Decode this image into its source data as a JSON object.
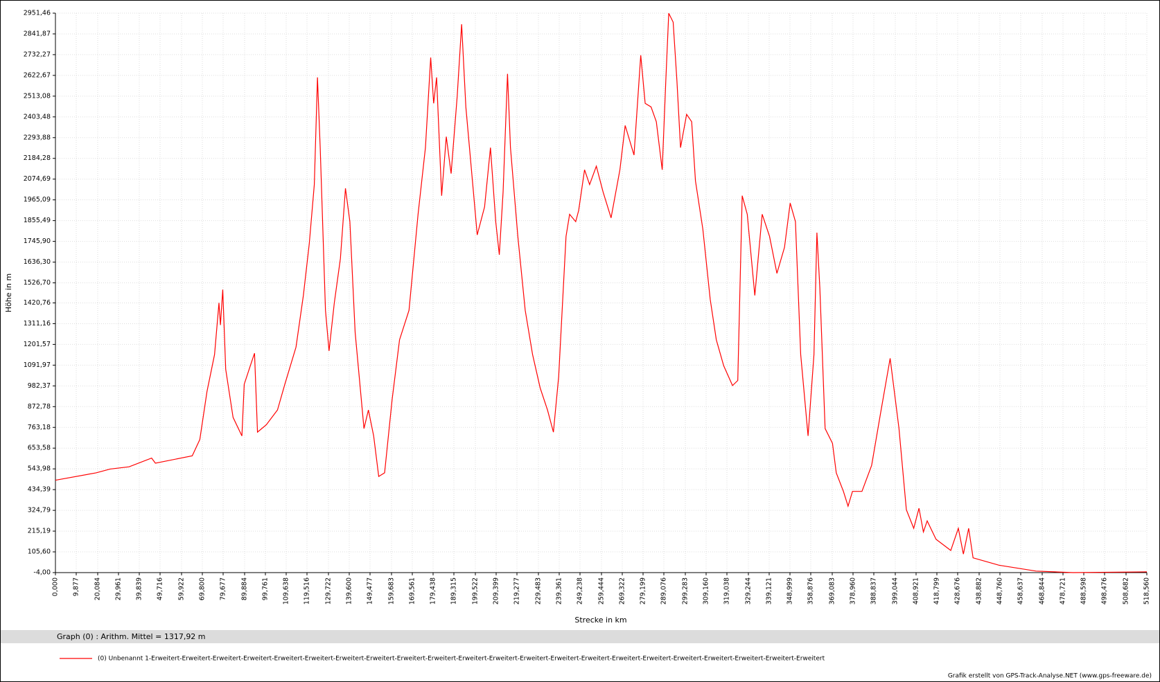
{
  "chart_data": {
    "type": "line",
    "x_label": "Strecke  in  km",
    "y_label": "Höhe  in  m",
    "x": [
      0,
      19.3,
      26,
      35,
      45.7,
      47.5,
      65,
      68.6,
      72,
      75.6,
      77.7,
      78.4,
      79.5,
      80.9,
      84.4,
      88.6,
      89.7,
      93.2,
      94.6,
      96,
      100.2,
      105.5,
      109,
      114.3,
      117.8,
      120.6,
      123,
      124.5,
      125.8,
      128.3,
      130,
      132.5,
      135.4,
      137.8,
      139.9,
      142.4,
      146.6,
      148.7,
      151.2,
      153.6,
      156.4,
      160,
      163.5,
      168,
      172.3,
      175.8,
      178.3,
      179.7,
      181.1,
      183.5,
      185.7,
      188,
      190.9,
      193,
      195,
      198.6,
      200.4,
      203.9,
      206.7,
      209.2,
      210.9,
      212.7,
      214.8,
      216.2,
      219.7,
      223.2,
      226.7,
      230.3,
      233.8,
      236.6,
      239.1,
      242.6,
      244.3,
      247.2,
      248.6,
      251.4,
      253.8,
      257,
      260.2,
      264,
      268.2,
      270.7,
      274.9,
      278.1,
      280.2,
      283,
      285.5,
      288.3,
      290,
      291.4,
      293.5,
      295.3,
      297,
      299.9,
      302.3,
      304.1,
      307.6,
      311.1,
      314,
      317.5,
      321.7,
      324.2,
      326.3,
      328.7,
      332.3,
      335.8,
      339.3,
      342.8,
      346.4,
      349.1,
      351.6,
      354.1,
      357.6,
      360.4,
      361.8,
      363.2,
      365.7,
      369.2,
      371,
      374.4,
      376.6,
      378.7,
      383.2,
      387.8,
      392,
      396.6,
      400.8,
      404.3,
      407.8,
      410.3,
      412.4,
      414.2,
      418.4,
      425.4,
      429,
      431.4,
      433.9,
      436,
      448.3,
      465.9,
      483.5,
      518.56
    ],
    "series": [
      {
        "name": "(0) Unbenannt 1-Erweitert-Erweitert-Erweitert-Erweitert-Erweitert-Erweitert-Erweitert-Erweitert-Erweitert-Erweitert-Erweitert-Erweitert-Erweitert-Erweitert-Erweitert-Erweitert-Erweitert-Erweitert-Erweitert-Erweitert-Erweitert-Erweitert",
        "color": "#ff0000",
        "values": [
          484,
          523,
          543,
          555,
          601,
          574,
          613,
          699,
          952,
          1148,
          1421,
          1304,
          1491,
          1070,
          816,
          718,
          991,
          1109,
          1155,
          738,
          777,
          855,
          991,
          1187,
          1460,
          1733,
          2046,
          2612,
          2241,
          1382,
          1167,
          1421,
          1655,
          2026,
          1850,
          1265,
          757,
          855,
          718,
          504,
          523,
          913,
          1226,
          1382,
          1889,
          2241,
          2717,
          2475,
          2612,
          1987,
          2299,
          2104,
          2514,
          2893,
          2456,
          2007,
          1780,
          1928,
          2241,
          1850,
          1675,
          2007,
          2631,
          2241,
          1772,
          1382,
          1148,
          972,
          855,
          738,
          1031,
          1772,
          1889,
          1850,
          1909,
          2124,
          2046,
          2143,
          2007,
          1870,
          2124,
          2358,
          2202,
          2729,
          2475,
          2456,
          2378,
          2124,
          2592,
          2951,
          2904,
          2592,
          2241,
          2417,
          2378,
          2065,
          1811,
          1440,
          1226,
          1089,
          984,
          1011,
          1987,
          1889,
          1460,
          1889,
          1772,
          1577,
          1714,
          1948,
          1850,
          1148,
          718,
          1148,
          1792,
          1499,
          757,
          679,
          523,
          425,
          347,
          425,
          425,
          562,
          835,
          1128,
          757,
          328,
          230,
          336,
          211,
          269,
          172,
          113,
          230,
          94,
          230,
          74,
          35,
          4,
          -4,
          0
        ]
      }
    ],
    "xlim": [
      0,
      518.56
    ],
    "ylim": [
      -4,
      2951.46
    ],
    "xticks": [
      {
        "value": 0,
        "label": "0,000"
      },
      {
        "value": 9.877,
        "label": "9,877"
      },
      {
        "value": 20.084,
        "label": "20,084"
      },
      {
        "value": 29.961,
        "label": "29,961"
      },
      {
        "value": 39.839,
        "label": "39,839"
      },
      {
        "value": 49.716,
        "label": "49,716"
      },
      {
        "value": 59.922,
        "label": "59,922"
      },
      {
        "value": 69.8,
        "label": "69,800"
      },
      {
        "value": 79.677,
        "label": "79,677"
      },
      {
        "value": 89.884,
        "label": "89,884"
      },
      {
        "value": 99.761,
        "label": "99,761"
      },
      {
        "value": 109.638,
        "label": "109,638"
      },
      {
        "value": 119.516,
        "label": "119,516"
      },
      {
        "value": 129.722,
        "label": "129,722"
      },
      {
        "value": 139.6,
        "label": "139,600"
      },
      {
        "value": 149.477,
        "label": "149,477"
      },
      {
        "value": 159.683,
        "label": "159,683"
      },
      {
        "value": 169.561,
        "label": "169,561"
      },
      {
        "value": 179.438,
        "label": "179,438"
      },
      {
        "value": 189.315,
        "label": "189,315"
      },
      {
        "value": 199.522,
        "label": "199,522"
      },
      {
        "value": 209.399,
        "label": "209,399"
      },
      {
        "value": 219.277,
        "label": "219,277"
      },
      {
        "value": 229.483,
        "label": "229,483"
      },
      {
        "value": 239.361,
        "label": "239,361"
      },
      {
        "value": 249.238,
        "label": "249,238"
      },
      {
        "value": 259.444,
        "label": "259,444"
      },
      {
        "value": 269.322,
        "label": "269,322"
      },
      {
        "value": 279.199,
        "label": "279,199"
      },
      {
        "value": 289.076,
        "label": "289,076"
      },
      {
        "value": 299.283,
        "label": "299,283"
      },
      {
        "value": 309.16,
        "label": "309,160"
      },
      {
        "value": 319.038,
        "label": "319,038"
      },
      {
        "value": 329.244,
        "label": "329,244"
      },
      {
        "value": 339.121,
        "label": "339,121"
      },
      {
        "value": 348.999,
        "label": "348,999"
      },
      {
        "value": 358.876,
        "label": "358,876"
      },
      {
        "value": 369.083,
        "label": "369,083"
      },
      {
        "value": 378.96,
        "label": "378,960"
      },
      {
        "value": 388.837,
        "label": "388,837"
      },
      {
        "value": 399.044,
        "label": "399,044"
      },
      {
        "value": 408.921,
        "label": "408,921"
      },
      {
        "value": 418.799,
        "label": "418,799"
      },
      {
        "value": 428.676,
        "label": "428,676"
      },
      {
        "value": 438.882,
        "label": "438,882"
      },
      {
        "value": 448.76,
        "label": "448,760"
      },
      {
        "value": 458.637,
        "label": "458,637"
      },
      {
        "value": 468.844,
        "label": "468,844"
      },
      {
        "value": 478.721,
        "label": "478,721"
      },
      {
        "value": 488.598,
        "label": "488,598"
      },
      {
        "value": 498.476,
        "label": "498,476"
      },
      {
        "value": 508.682,
        "label": "508,682"
      },
      {
        "value": 518.56,
        "label": "518,560"
      }
    ],
    "yticks": [
      {
        "value": -4,
        "label": "-4,00"
      },
      {
        "value": 105.6,
        "label": "105,60"
      },
      {
        "value": 215.19,
        "label": "215,19"
      },
      {
        "value": 324.79,
        "label": "324,79"
      },
      {
        "value": 434.39,
        "label": "434,39"
      },
      {
        "value": 543.98,
        "label": "543,98"
      },
      {
        "value": 653.58,
        "label": "653,58"
      },
      {
        "value": 763.18,
        "label": "763,18"
      },
      {
        "value": 872.78,
        "label": "872,78"
      },
      {
        "value": 982.37,
        "label": "982,37"
      },
      {
        "value": 1091.97,
        "label": "1091,97"
      },
      {
        "value": 1201.57,
        "label": "1201,57"
      },
      {
        "value": 1311.16,
        "label": "1311,16"
      },
      {
        "value": 1420.76,
        "label": "1420,76"
      },
      {
        "value": 1526.7,
        "label": "1526,70"
      },
      {
        "value": 1636.3,
        "label": "1636,30"
      },
      {
        "value": 1745.9,
        "label": "1745,90"
      },
      {
        "value": 1855.49,
        "label": "1855,49"
      },
      {
        "value": 1965.09,
        "label": "1965,09"
      },
      {
        "value": 2074.69,
        "label": "2074,69"
      },
      {
        "value": 2184.28,
        "label": "2184,28"
      },
      {
        "value": 2293.88,
        "label": "2293,88"
      },
      {
        "value": 2403.48,
        "label": "2403,48"
      },
      {
        "value": 2513.08,
        "label": "2513,08"
      },
      {
        "value": 2622.67,
        "label": "2622,67"
      },
      {
        "value": 2732.27,
        "label": "2732,27"
      },
      {
        "value": 2841.87,
        "label": "2841,87"
      },
      {
        "value": 2951.46,
        "label": "2951,46"
      }
    ],
    "grid": true,
    "stats": "Graph (0) :  Arithm. Mittel = 1317,92 m",
    "footer": "Grafik erstellt von GPS-Track-Analyse.NET (www.gps-freeware.de)"
  }
}
